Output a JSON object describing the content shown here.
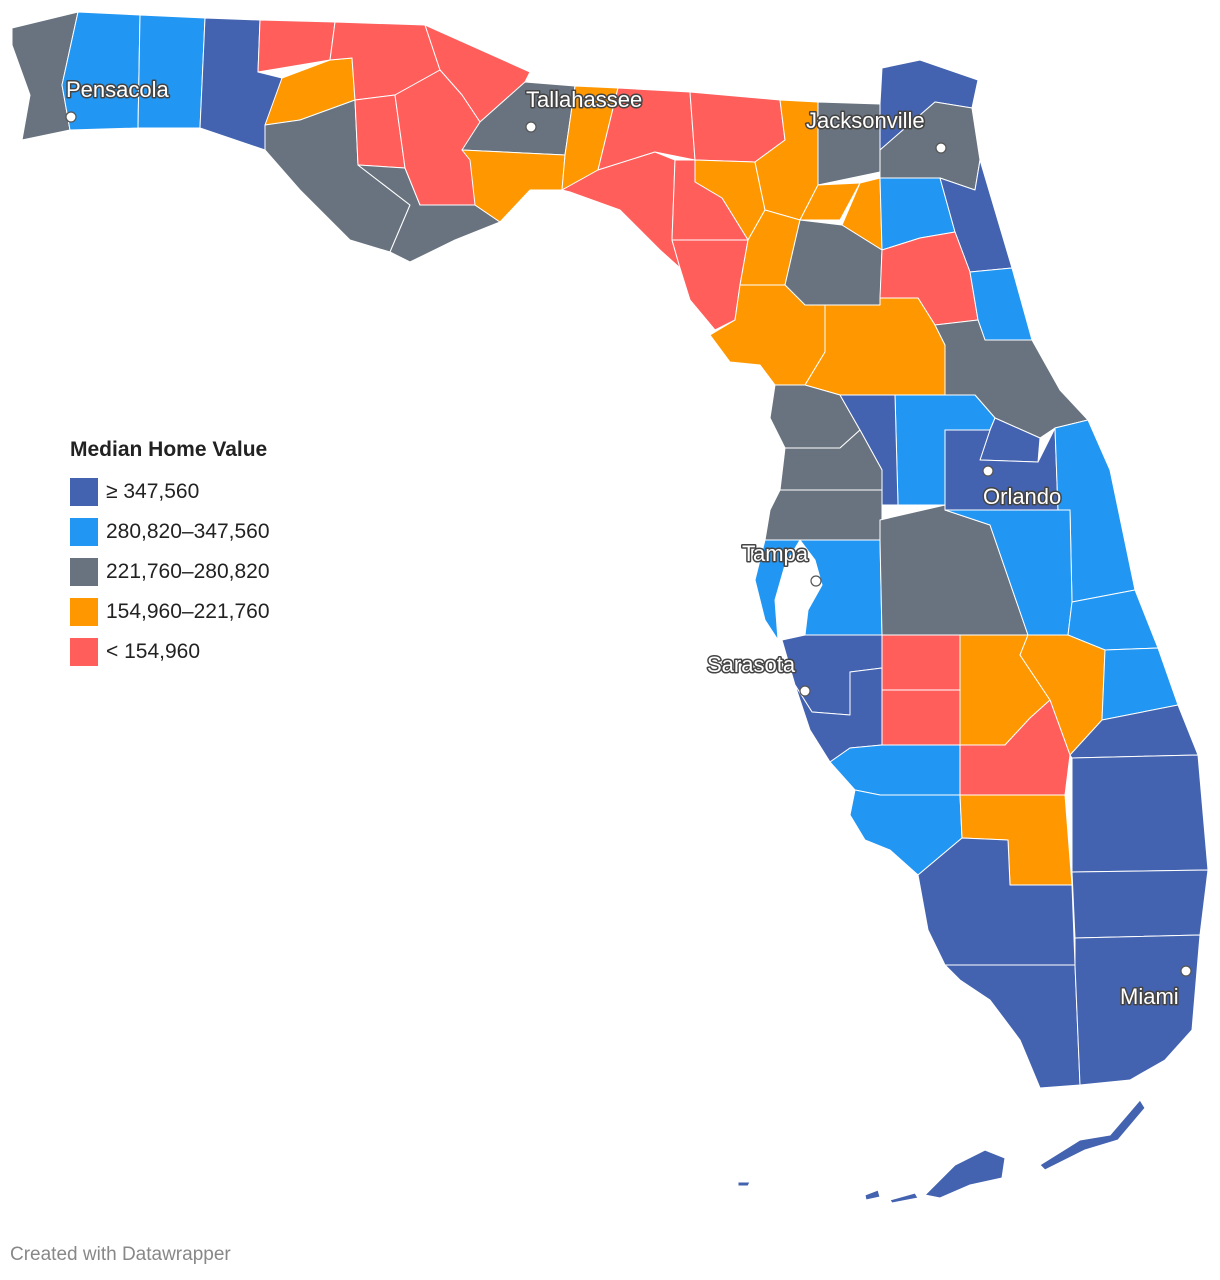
{
  "legend": {
    "title": "Median Home Value",
    "items": [
      {
        "label": "≥ 347,560",
        "color": "#4363b0"
      },
      {
        "label": "280,820–347,560",
        "color": "#2196f3"
      },
      {
        "label": "221,760–280,820",
        "color": "#68737f"
      },
      {
        "label": "154,960–221,760",
        "color": "#ff9800"
      },
      {
        "label": "< 154,960",
        "color": "#ff5e5b"
      }
    ]
  },
  "cities": [
    {
      "id": "pensacola",
      "name": "Pensacola"
    },
    {
      "id": "tallahassee",
      "name": "Tallahassee"
    },
    {
      "id": "jacksonville",
      "name": "Jacksonville"
    },
    {
      "id": "orlando",
      "name": "Orlando"
    },
    {
      "id": "tampa",
      "name": "Tampa"
    },
    {
      "id": "sarasota",
      "name": "Sarasota"
    },
    {
      "id": "miami",
      "name": "Miami"
    }
  ],
  "credit": "Created with Datawrapper"
}
